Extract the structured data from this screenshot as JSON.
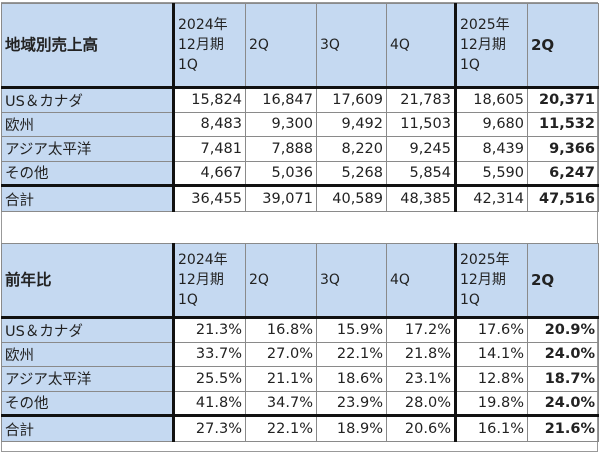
{
  "tables": [
    {
      "title": "地域別売上高",
      "columns": [
        "2024年\n12月期\n1Q",
        "2Q",
        "3Q",
        "4Q",
        "2025年\n12月期\n1Q",
        "2Q"
      ],
      "rows": [
        {
          "label": "US＆カナダ",
          "values": [
            "15,824",
            "16,847",
            "17,609",
            "21,783",
            "18,605",
            "20,371"
          ]
        },
        {
          "label": "欧州",
          "values": [
            "8,483",
            "9,300",
            "9,492",
            "11,503",
            "9,680",
            "11,532"
          ]
        },
        {
          "label": "アジア太平洋",
          "values": [
            "7,481",
            "7,888",
            "8,220",
            "9,245",
            "8,439",
            "9,366"
          ]
        },
        {
          "label": "その他",
          "values": [
            "4,667",
            "5,036",
            "5,268",
            "5,854",
            "5,590",
            "6,247"
          ]
        }
      ],
      "total": {
        "label": "合計",
        "values": [
          "36,455",
          "39,071",
          "40,589",
          "48,385",
          "42,314",
          "47,516"
        ]
      }
    },
    {
      "title": "前年比",
      "columns": [
        "2024年\n12月期\n1Q",
        "2Q",
        "3Q",
        "4Q",
        "2025年\n12月期\n1Q",
        "2Q"
      ],
      "rows": [
        {
          "label": "US＆カナダ",
          "values": [
            "21.3%",
            "16.8%",
            "15.9%",
            "17.2%",
            "17.6%",
            "20.9%"
          ]
        },
        {
          "label": "欧州",
          "values": [
            "33.7%",
            "27.0%",
            "22.1%",
            "21.8%",
            "14.1%",
            "24.0%"
          ]
        },
        {
          "label": "アジア太平洋",
          "values": [
            "25.5%",
            "21.1%",
            "18.6%",
            "23.1%",
            "12.8%",
            "18.7%"
          ]
        },
        {
          "label": "その他",
          "values": [
            "41.8%",
            "34.7%",
            "23.9%",
            "28.0%",
            "19.8%",
            "24.0%"
          ]
        }
      ],
      "total": {
        "label": "合計",
        "values": [
          "27.3%",
          "22.1%",
          "18.9%",
          "20.6%",
          "16.1%",
          "21.6%"
        ]
      }
    }
  ],
  "colors": {
    "header_bg": "#c5d9f1",
    "border": "#8a8a8a",
    "thick_border": "#111111"
  }
}
